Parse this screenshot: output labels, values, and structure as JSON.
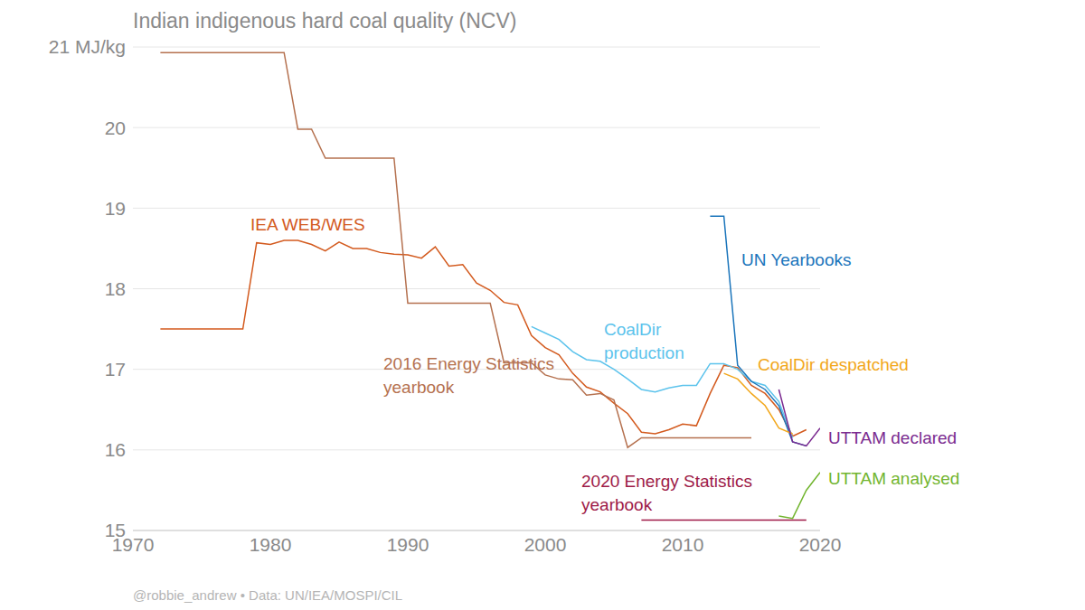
{
  "chart_data": {
    "type": "line",
    "title": "Indian indigenous hard coal quality (NCV)",
    "source": "@robbie_andrew • Data: UN/IEA/MOSPI/CIL",
    "xlim": [
      1970,
      2020
    ],
    "xticks": [
      1970,
      1980,
      1990,
      2000,
      2010,
      2020
    ],
    "ylim": [
      15,
      21
    ],
    "yticks": [
      15,
      16,
      17,
      18,
      19,
      20,
      {
        "value": 21,
        "label": "21 MJ/kg"
      }
    ],
    "grid": true,
    "series": [
      {
        "name": "IEA WEB/WES",
        "color": "#d35a1e",
        "x": [
          1972,
          1973,
          1974,
          1975,
          1976,
          1977,
          1978,
          1979,
          1980,
          1981,
          1982,
          1983,
          1984,
          1985,
          1986,
          1987,
          1988,
          1989,
          1990,
          1991,
          1992,
          1993,
          1994,
          1995,
          1996,
          1997,
          1998,
          1999,
          2000,
          2001,
          2002,
          2003,
          2004,
          2005,
          2006,
          2007,
          2008,
          2009,
          2010,
          2011,
          2012,
          2013,
          2014,
          2015,
          2016,
          2017,
          2018,
          2019
        ],
        "values": [
          17.5,
          17.5,
          17.5,
          17.5,
          17.5,
          17.5,
          17.5,
          18.57,
          18.55,
          18.6,
          18.6,
          18.55,
          18.47,
          18.58,
          18.5,
          18.5,
          18.45,
          18.43,
          18.42,
          18.38,
          18.52,
          18.28,
          18.3,
          18.07,
          17.98,
          17.83,
          17.8,
          17.42,
          17.27,
          17.18,
          16.95,
          16.78,
          16.72,
          16.58,
          16.45,
          16.22,
          16.2,
          16.25,
          16.32,
          16.3,
          16.7,
          17.05,
          17.02,
          16.8,
          16.7,
          16.5,
          16.17,
          16.25
        ]
      },
      {
        "name": "2016 Energy Statistics yearbook",
        "color": "#b5714f",
        "x": [
          1972,
          1973,
          1974,
          1975,
          1976,
          1977,
          1978,
          1979,
          1980,
          1981,
          1982,
          1983,
          1984,
          1985,
          1986,
          1987,
          1988,
          1989,
          1990,
          1991,
          1992,
          1993,
          1994,
          1995,
          1996,
          1997,
          1998,
          1999,
          2000,
          2001,
          2002,
          2003,
          2004,
          2005,
          2006,
          2007,
          2008,
          2009,
          2010,
          2011,
          2012,
          2013,
          2014,
          2015
        ],
        "values": [
          20.93,
          20.93,
          20.93,
          20.93,
          20.93,
          20.93,
          20.93,
          20.93,
          20.93,
          20.93,
          19.98,
          19.98,
          19.62,
          19.62,
          19.62,
          19.62,
          19.62,
          19.62,
          17.82,
          17.82,
          17.82,
          17.82,
          17.82,
          17.82,
          17.82,
          17.08,
          17.08,
          17.08,
          16.93,
          16.88,
          16.87,
          16.68,
          16.7,
          16.62,
          16.03,
          16.15,
          16.15,
          16.15,
          16.15,
          16.15,
          16.15,
          16.15,
          16.15,
          16.15
        ]
      },
      {
        "name": "2020 Energy Statistics yearbook",
        "color": "#9e1a47",
        "x": [
          2007,
          2008,
          2009,
          2010,
          2011,
          2012,
          2013,
          2014,
          2015,
          2016,
          2017,
          2018,
          2019
        ],
        "values": [
          15.13,
          15.13,
          15.13,
          15.13,
          15.13,
          15.13,
          15.13,
          15.13,
          15.13,
          15.13,
          15.13,
          15.13,
          15.13
        ]
      },
      {
        "name": "CoalDir production",
        "color": "#5cc3ec",
        "x": [
          1999,
          2000,
          2001,
          2002,
          2003,
          2004,
          2005,
          2006,
          2007,
          2008,
          2009,
          2010,
          2011,
          2012,
          2013,
          2014,
          2015,
          2016,
          2017,
          2018
        ],
        "values": [
          17.53,
          17.45,
          17.37,
          17.22,
          17.12,
          17.1,
          17.0,
          16.88,
          16.75,
          16.72,
          16.77,
          16.8,
          16.8,
          17.07,
          17.07,
          17.0,
          16.85,
          16.8,
          16.6,
          16.15
        ]
      },
      {
        "name": "UN Yearbooks",
        "color": "#1b75bb",
        "x": [
          2012,
          2013,
          2014,
          2015,
          2016,
          2017,
          2018,
          2019
        ],
        "values": [
          18.9,
          18.9,
          17.05,
          16.85,
          16.75,
          16.55,
          16.1,
          16.05
        ]
      },
      {
        "name": "CoalDir despatched",
        "color": "#f2a71b",
        "x": [
          2013,
          2014,
          2015,
          2016,
          2017,
          2018
        ],
        "values": [
          16.95,
          16.88,
          16.7,
          16.55,
          16.27,
          16.2
        ]
      },
      {
        "name": "UTTAM declared",
        "color": "#7b2b90",
        "x": [
          2017,
          2018,
          2019,
          2020
        ],
        "values": [
          16.75,
          16.1,
          16.05,
          16.27
        ]
      },
      {
        "name": "UTTAM analysed",
        "color": "#72b52f",
        "x": [
          2017,
          2018,
          2019,
          2020
        ],
        "values": [
          15.18,
          15.15,
          15.5,
          15.72
        ]
      }
    ]
  }
}
